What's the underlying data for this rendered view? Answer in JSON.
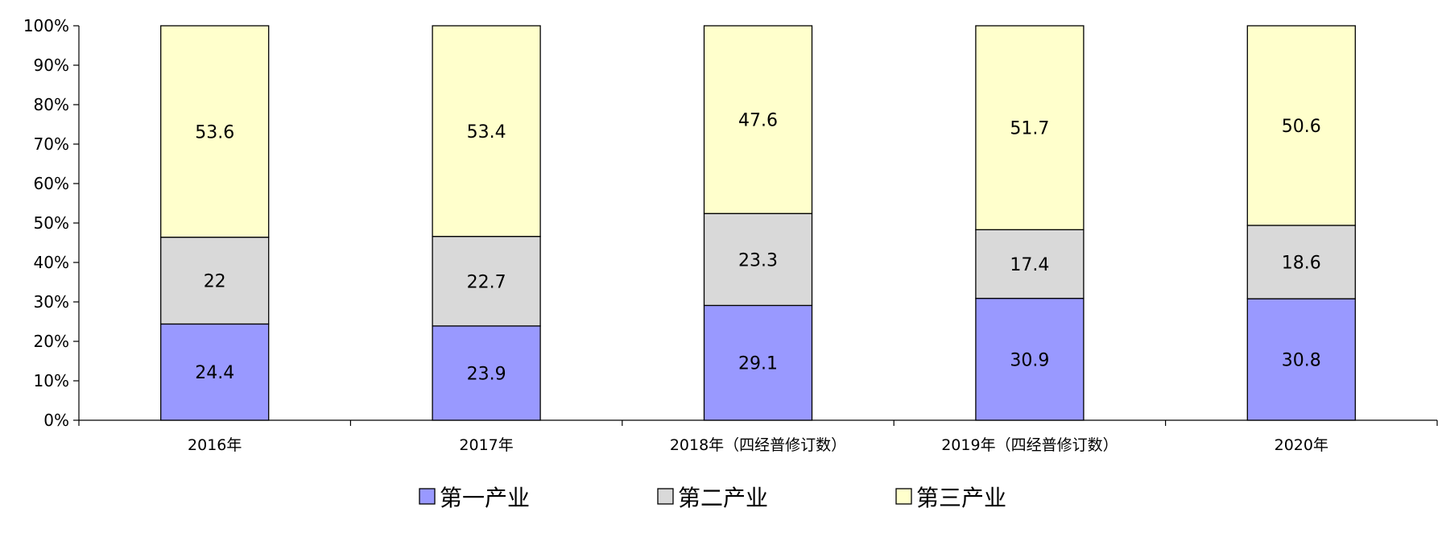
{
  "chart_data": {
    "type": "bar",
    "stacked": true,
    "percent_stacked": true,
    "categories": [
      "2016年",
      "2017年",
      "2018年（四经普修订数）",
      "2019年（四经普修订数）",
      "2020年"
    ],
    "series": [
      {
        "name": "第一产业",
        "values": [
          24.4,
          23.9,
          29.1,
          30.9,
          30.8
        ],
        "color": "#9999ff"
      },
      {
        "name": "第二产业",
        "values": [
          22,
          22.7,
          23.3,
          17.4,
          18.6
        ],
        "color": "#d9d9d9"
      },
      {
        "name": "第三产业",
        "values": [
          53.6,
          53.4,
          47.6,
          51.7,
          50.6
        ],
        "color": "#ffffcc"
      }
    ],
    "ylim": [
      0,
      100
    ],
    "yticks": [
      "0%",
      "10%",
      "20%",
      "30%",
      "40%",
      "50%",
      "60%",
      "70%",
      "80%",
      "90%",
      "100%"
    ],
    "grid": false,
    "legend_position": "bottom",
    "title": "",
    "xlabel": "",
    "ylabel": ""
  }
}
